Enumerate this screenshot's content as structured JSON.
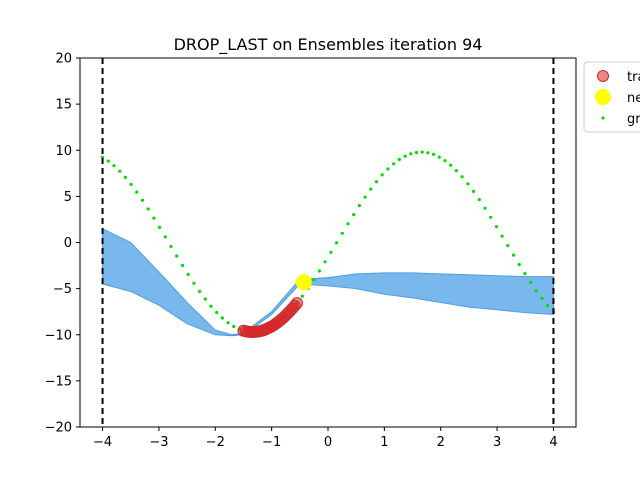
{
  "chart_data": {
    "type": "scatter",
    "title": "DROP_LAST on Ensembles iteration 94",
    "xlabel": "",
    "ylabel": "",
    "xlim": [
      -4.4,
      4.4
    ],
    "ylim": [
      -20,
      20
    ],
    "xticks": [
      -4,
      -3,
      -2,
      -1,
      0,
      1,
      2,
      3,
      4
    ],
    "yticks": [
      -20,
      -15,
      -10,
      -5,
      0,
      5,
      10,
      15,
      20
    ],
    "xtick_labels": [
      "−4",
      "−3",
      "−2",
      "−1",
      "0",
      "1",
      "2",
      "3",
      "4"
    ],
    "ytick_labels": [
      "−20",
      "−15",
      "−10",
      "−5",
      "0",
      "5",
      "10",
      "15",
      "20"
    ],
    "grid": false,
    "legend_position": "outside-top-right",
    "legend_labels": [
      "tra",
      "ne",
      "gr"
    ],
    "vlines": [
      -4,
      4
    ],
    "colors": {
      "train": "#d62728",
      "new": "#ffff00",
      "ground_truth": "#00dd00",
      "band": "#78b8ec",
      "band_edge": "#4f9fde",
      "vline": "#000000"
    },
    "uncertainty_band": {
      "x": [
        -4.0,
        -3.5,
        -3.0,
        -2.5,
        -2.0,
        -1.7,
        -1.5,
        -1.0,
        -0.5,
        0.0,
        0.5,
        1.0,
        1.5,
        2.0,
        2.5,
        3.0,
        3.5,
        4.0
      ],
      "upper": [
        1.5,
        0.0,
        -3.2,
        -6.5,
        -9.5,
        -10.0,
        -9.8,
        -7.5,
        -4.0,
        -3.8,
        -3.4,
        -3.3,
        -3.3,
        -3.4,
        -3.5,
        -3.6,
        -3.7,
        -3.7
      ],
      "lower": [
        -4.5,
        -5.3,
        -6.8,
        -8.8,
        -10.0,
        -10.1,
        -10.0,
        -7.8,
        -4.5,
        -4.7,
        -5.0,
        -5.6,
        -6.0,
        -6.5,
        -7.0,
        -7.3,
        -7.6,
        -7.8
      ]
    },
    "ground_truth": {
      "name": "gr",
      "x_start": -4.0,
      "x_end": 4.0,
      "n_points": 80,
      "a": 9.75,
      "b": 0.05,
      "k": 1.05,
      "x0": 0.16
    },
    "train": {
      "name": "tra",
      "x_start": -1.5,
      "x_end": -0.55,
      "n_points": 24
    },
    "new_point": {
      "name": "ne",
      "x": -0.43,
      "y": -4.3
    }
  }
}
